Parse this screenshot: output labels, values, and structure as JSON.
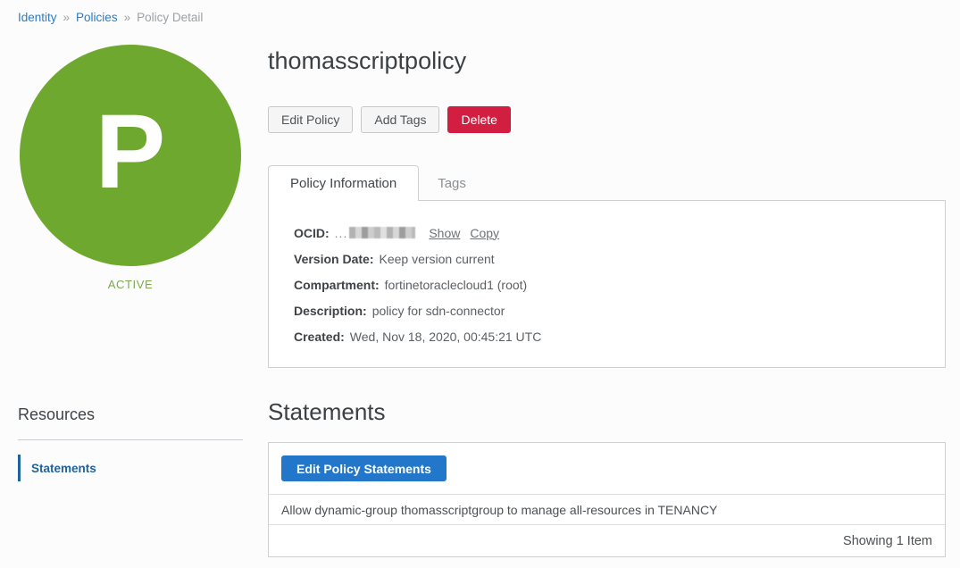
{
  "breadcrumb": {
    "separator": "»",
    "items": [
      {
        "label": "Identity"
      },
      {
        "label": "Policies"
      },
      {
        "label": "Policy Detail"
      }
    ]
  },
  "avatar": {
    "letter": "P",
    "status": "ACTIVE"
  },
  "page": {
    "title": "thomasscriptpolicy"
  },
  "actions": {
    "edit_policy": "Edit Policy",
    "add_tags": "Add Tags",
    "delete": "Delete"
  },
  "tabs": [
    {
      "label": "Policy Information",
      "active": true
    },
    {
      "label": "Tags",
      "active": false
    }
  ],
  "policy_info": {
    "ocid_label": "OCID:",
    "ocid_prefix": "...",
    "show_link": "Show",
    "copy_link": "Copy",
    "fields": [
      {
        "label": "Version Date:",
        "value": "Keep version current"
      },
      {
        "label": "Compartment:",
        "value": "fortinetoraclecloud1 (root)"
      },
      {
        "label": "Description:",
        "value": "policy for sdn-connector"
      },
      {
        "label": "Created:",
        "value": "Wed, Nov 18, 2020, 00:45:21 UTC"
      }
    ]
  },
  "resources": {
    "heading": "Resources",
    "items": [
      {
        "label": "Statements",
        "active": true
      }
    ]
  },
  "statements": {
    "heading": "Statements",
    "edit_button": "Edit Policy Statements",
    "rows": [
      "Allow dynamic-group thomasscriptgroup to manage all-resources in TENANCY"
    ],
    "footer": "Showing 1 Item"
  },
  "colors": {
    "green": "#6ea82e",
    "status-green": "#7da84e",
    "red": "#d21e41",
    "blue": "#2277ca",
    "link-blue": "#2a7cc7",
    "sidebar-blue": "#1f639e"
  }
}
